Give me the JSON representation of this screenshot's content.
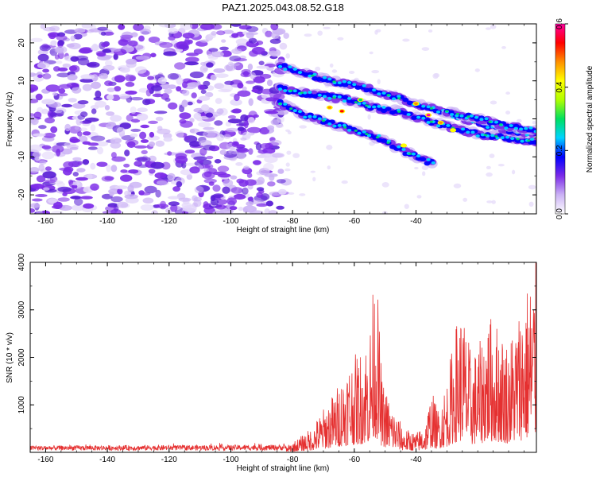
{
  "title": "PAZ1.2025.043.08.52.G18",
  "chart_data": [
    {
      "type": "heatmap",
      "xlabel": "Height of straight line (km)",
      "ylabel": "Frequency (Hz)",
      "xlim": [
        -165,
        -1
      ],
      "ylim": [
        -25,
        25
      ],
      "xticks": [
        -160,
        -140,
        -120,
        -100,
        -80,
        -60,
        -40
      ],
      "yticks": [
        -20,
        -10,
        0,
        10,
        20
      ],
      "colorbar": {
        "label": "Normalized spectral amplitude",
        "range": [
          0.0,
          0.6
        ],
        "ticks": [
          0.0,
          0.2,
          0.4,
          0.6
        ],
        "colormap": [
          "#ffffff",
          "#cbb2f5",
          "#7c2be8",
          "#0000ff",
          "#00d4ff",
          "#00e060",
          "#b0ff00",
          "#ffff00",
          "#ff9000",
          "#ff0000",
          "#ff00a0"
        ]
      },
      "noise_region": {
        "x_from": -165,
        "x_to": -82,
        "freq_from": -25,
        "freq_to": 25,
        "amplitude": 0.08
      },
      "signal_tracks": [
        {
          "x": [
            -84,
            -78,
            -70,
            -62,
            -54,
            -46,
            -38,
            -30,
            -20,
            -10,
            -1
          ],
          "freq": [
            8,
            7,
            6,
            5,
            3,
            2,
            0,
            -2,
            -4,
            -5,
            -6
          ]
        },
        {
          "x": [
            -84,
            -76,
            -68,
            -60,
            -52,
            -44,
            -36,
            -28,
            -20,
            -10,
            -1
          ],
          "freq": [
            14,
            12,
            10,
            9,
            7,
            5,
            3,
            1,
            -1,
            -3,
            -4
          ]
        },
        {
          "x": [
            -84,
            -76,
            -68,
            -60,
            -52,
            -45,
            -40,
            -34
          ],
          "freq": [
            4,
            1,
            -1,
            -3,
            -5,
            -8,
            -10,
            -12
          ]
        },
        {
          "x": [
            -30,
            -20,
            -10,
            -1
          ],
          "freq": [
            2,
            0,
            -2,
            -3
          ]
        }
      ],
      "hotspots": [
        {
          "x": -68,
          "freq": 3,
          "value": 0.45
        },
        {
          "x": -64,
          "freq": 2,
          "value": 0.55
        },
        {
          "x": -58,
          "freq": 5,
          "value": 0.3
        },
        {
          "x": -44,
          "freq": -7,
          "value": 0.4
        },
        {
          "x": -40,
          "freq": 4,
          "value": 0.48
        },
        {
          "x": -36,
          "freq": 1,
          "value": 0.6
        },
        {
          "x": -32,
          "freq": -1,
          "value": 0.5
        },
        {
          "x": -28,
          "freq": -3,
          "value": 0.42
        }
      ]
    },
    {
      "type": "line",
      "xlabel": "Height of straight line (km)",
      "ylabel": "SNR (10 * v/v)",
      "xlim": [
        -165,
        -1
      ],
      "ylim": [
        0,
        4000
      ],
      "xticks": [
        -160,
        -140,
        -120,
        -100,
        -80,
        -60,
        -40
      ],
      "yticks": [
        1000,
        2000,
        3000,
        4000
      ],
      "color": "#e53030",
      "envelope": [
        {
          "x": -165,
          "snr": 100
        },
        {
          "x": -82,
          "snr": 120
        },
        {
          "x": -78,
          "snr": 300
        },
        {
          "x": -74,
          "snr": 500
        },
        {
          "x": -70,
          "snr": 900
        },
        {
          "x": -66,
          "snr": 1300
        },
        {
          "x": -62,
          "snr": 1900
        },
        {
          "x": -58,
          "snr": 2100
        },
        {
          "x": -55,
          "snr": 2600
        },
        {
          "x": -53,
          "snr": 4000
        },
        {
          "x": -51,
          "snr": 1500
        },
        {
          "x": -48,
          "snr": 1000
        },
        {
          "x": -44,
          "snr": 500
        },
        {
          "x": -40,
          "snr": 400
        },
        {
          "x": -37,
          "snr": 600
        },
        {
          "x": -35,
          "snr": 1300
        },
        {
          "x": -33,
          "snr": 900
        },
        {
          "x": -30,
          "snr": 1500
        },
        {
          "x": -27,
          "snr": 2700
        },
        {
          "x": -25,
          "snr": 3000
        },
        {
          "x": -22,
          "snr": 2000
        },
        {
          "x": -19,
          "snr": 2300
        },
        {
          "x": -17,
          "snr": 2900
        },
        {
          "x": -14,
          "snr": 2700
        },
        {
          "x": -10,
          "snr": 2300
        },
        {
          "x": -6,
          "snr": 3100
        },
        {
          "x": -4,
          "snr": 3500
        },
        {
          "x": -2,
          "snr": 3800
        },
        {
          "x": -1,
          "snr": 3900
        }
      ]
    }
  ]
}
